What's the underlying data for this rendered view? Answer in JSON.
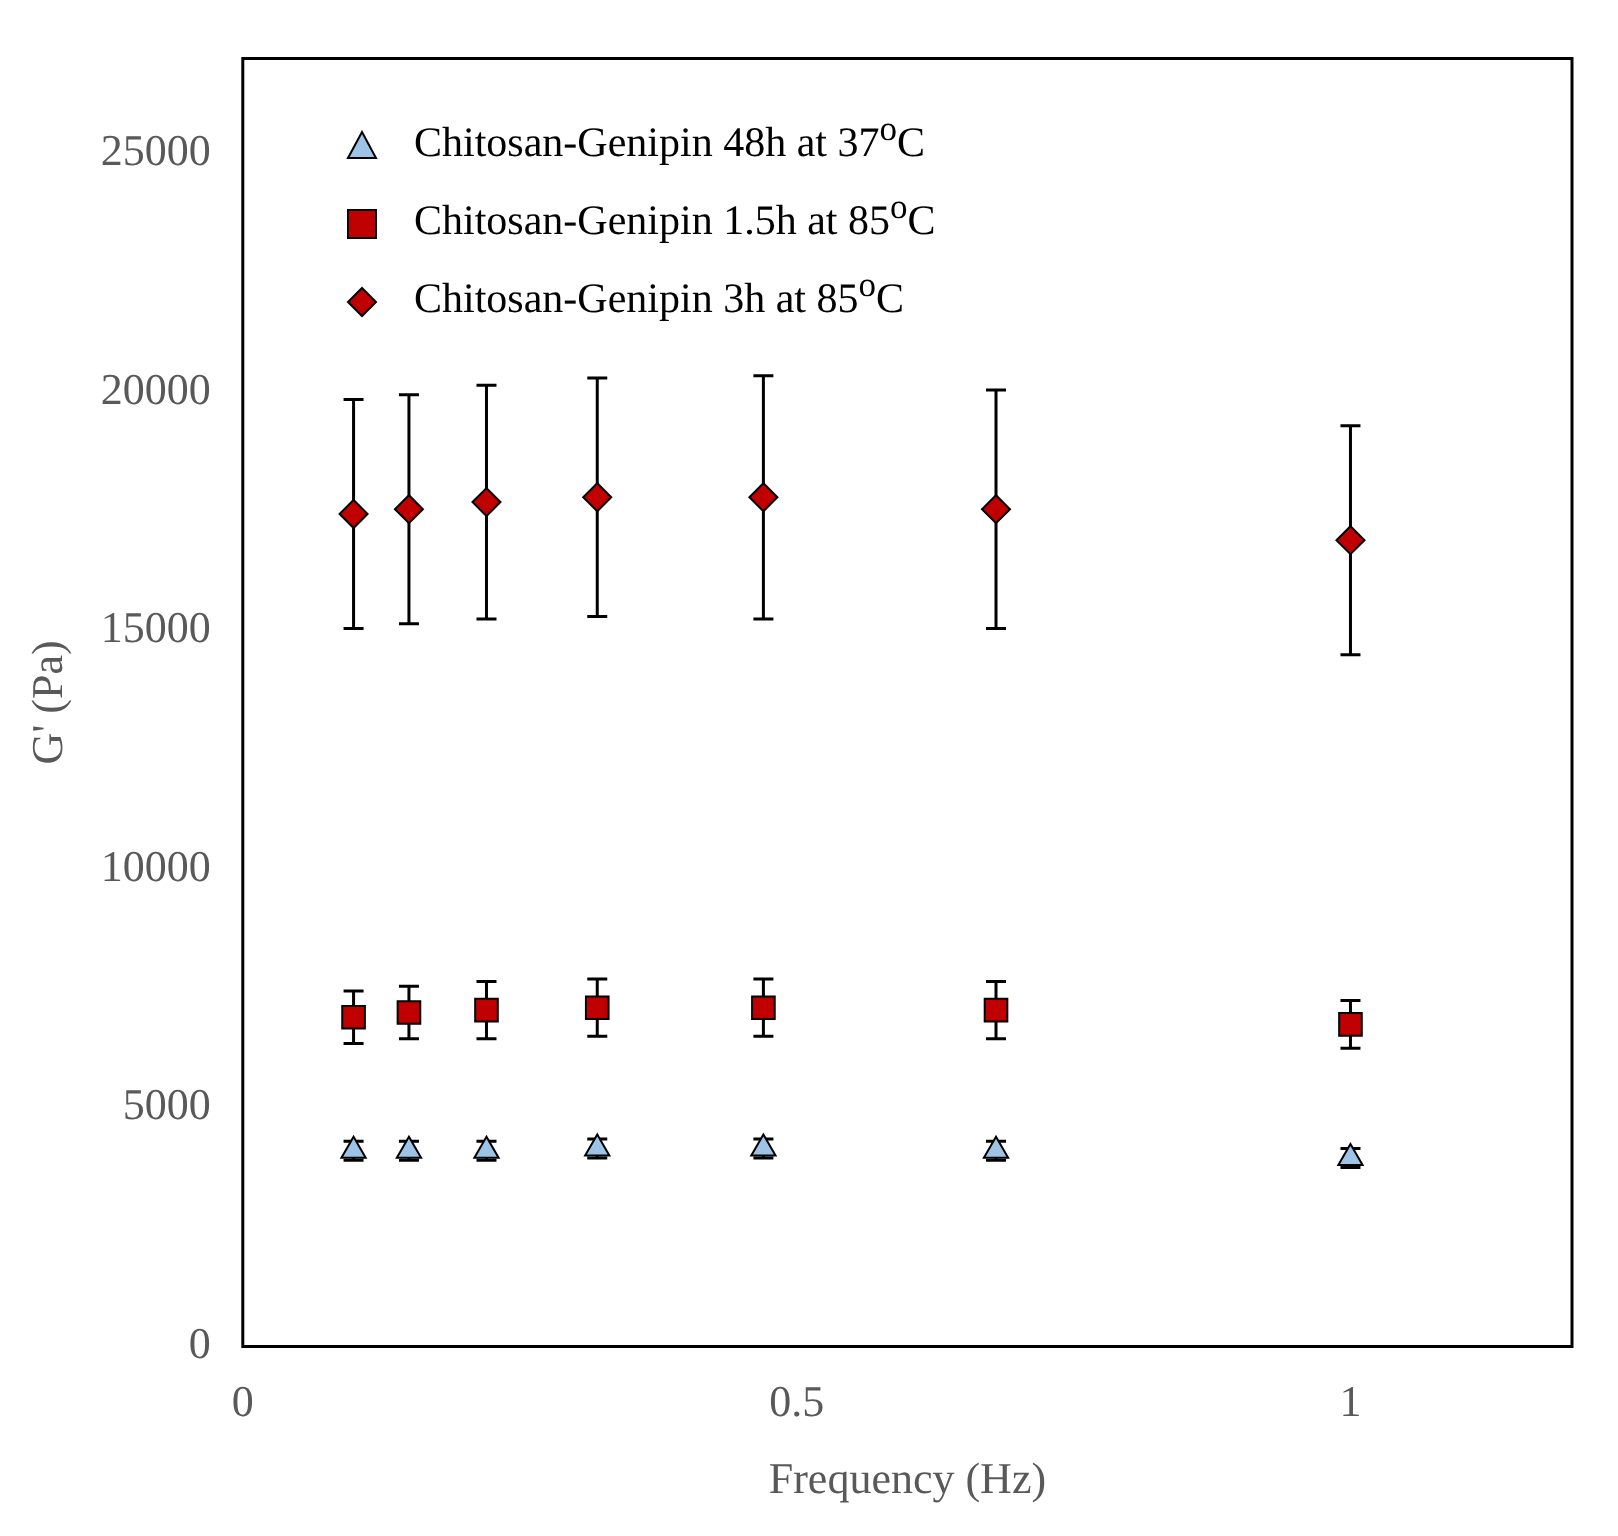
{
  "chart_data": {
    "type": "scatter",
    "xlabel": "Frequency (Hz)",
    "ylabel": "G' (Pa)",
    "xlim": [
      0,
      1.2
    ],
    "xticks": [
      0,
      0.5,
      1
    ],
    "ylim": [
      0,
      27000
    ],
    "yticks": [
      0,
      5000,
      10000,
      15000,
      20000,
      25000
    ],
    "grid": false,
    "legend": "top left",
    "x": [
      0.1,
      0.15,
      0.22,
      0.32,
      0.47,
      0.68,
      1
    ],
    "series": [
      {
        "name": "Chitosan-Genipin 48h at 37$^{o}$C",
        "color": "#9dc3e6",
        "marker": "triangle",
        "values": [
          4100,
          4100,
          4100,
          4150,
          4150,
          4100,
          3950
        ],
        "errors": [
          200,
          200,
          200,
          200,
          200,
          200,
          200
        ]
      },
      {
        "name": "Chitosan-Genipin 1.5h at 85$^{o}$C",
        "color": "#c00000",
        "marker": "square",
        "values": [
          6900,
          7000,
          7050,
          7100,
          7100,
          7050,
          6750
        ],
        "errors": [
          550,
          550,
          600,
          600,
          600,
          600,
          500
        ]
      },
      {
        "name": "Chitosan-Genipin 3h at 85$^{o}$C",
        "color": "#c00000",
        "marker": "diamond",
        "values": [
          17450,
          17550,
          17700,
          17800,
          17800,
          17550,
          16900
        ],
        "errors": [
          2400,
          2400,
          2450,
          2500,
          2550,
          2500,
          2400
        ]
      }
    ]
  }
}
